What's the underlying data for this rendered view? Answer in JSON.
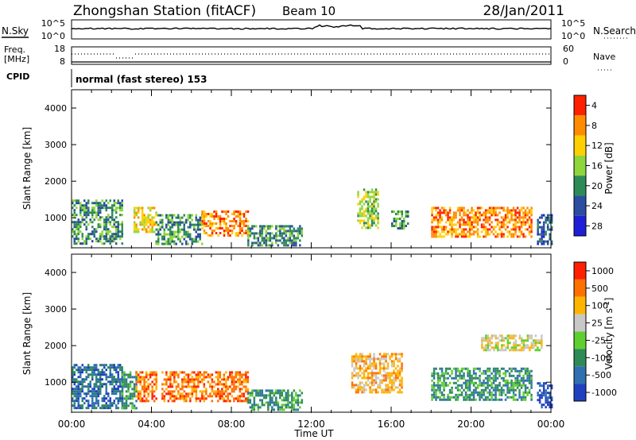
{
  "header": {
    "title": "Zhongshan Station (fitACF)",
    "beam": "Beam 10",
    "date": "28/Jan/2011"
  },
  "noise_panel": {
    "left_label": "N.Sky",
    "left_ticks": [
      "10^5",
      "10^0"
    ],
    "right_label": "N.Search",
    "right_ticks": [
      "10^5",
      "10^0"
    ]
  },
  "freq_panel": {
    "left_label_line1": "Freq.",
    "left_label_line2": "[MHz]",
    "left_ticks": [
      "18",
      "8"
    ],
    "right_label": "Nave",
    "right_ticks": [
      "60",
      "0"
    ]
  },
  "cpid": {
    "label": "CPID",
    "text": "normal (fast stereo) 153"
  },
  "x_axis": {
    "label": "Time UT",
    "tick_labels": [
      "00:00",
      "04:00",
      "08:00",
      "12:00",
      "16:00",
      "20:00",
      "00:00"
    ]
  },
  "chart_data": [
    {
      "type": "heatmap",
      "title": "",
      "quantity": "Power [dB]",
      "ylabel": "Slant Range [km]",
      "xlabel": "Time UT",
      "x_range_hours": [
        0,
        24
      ],
      "ylim": [
        180,
        4500
      ],
      "y_ticks": [
        1000,
        2000,
        3000,
        4000
      ],
      "colorbar": {
        "label": "Power [dB]",
        "tick_labels": [
          "4",
          "8",
          "12",
          "16",
          "20",
          "24",
          "28"
        ],
        "colors": [
          "#1f1fd8",
          "#2b4ea0",
          "#2e8b57",
          "#8fd63b",
          "#ffd000",
          "#ff8c00",
          "#ff2000"
        ]
      },
      "echo_regions": [
        {
          "t": [
            0.0,
            2.5
          ],
          "range_km": [
            300,
            1500
          ],
          "level": 2
        },
        {
          "t": [
            3.1,
            4.2
          ],
          "range_km": [
            600,
            1300
          ],
          "level": 4
        },
        {
          "t": [
            4.2,
            6.5
          ],
          "range_km": [
            300,
            1100
          ],
          "level": 2
        },
        {
          "t": [
            6.5,
            8.8
          ],
          "range_km": [
            500,
            1200
          ],
          "level": 5
        },
        {
          "t": [
            8.8,
            11.5
          ],
          "range_km": [
            250,
            800
          ],
          "level": 2
        },
        {
          "t": [
            14.3,
            15.3
          ],
          "range_km": [
            700,
            1800
          ],
          "level": 3
        },
        {
          "t": [
            16.0,
            16.8
          ],
          "range_km": [
            700,
            1200
          ],
          "level": 2
        },
        {
          "t": [
            18.0,
            23.0
          ],
          "range_km": [
            500,
            1300
          ],
          "level": 5
        },
        {
          "t": [
            23.3,
            24.0
          ],
          "range_km": [
            300,
            1100
          ],
          "level": 1
        }
      ]
    },
    {
      "type": "heatmap",
      "title": "",
      "quantity": "Velocity [m s^-1]",
      "ylabel": "Slant Range [km]",
      "xlabel": "Time UT",
      "x_range_hours": [
        0,
        24
      ],
      "ylim": [
        180,
        4500
      ],
      "y_ticks": [
        1000,
        2000,
        3000,
        4000
      ],
      "colorbar": {
        "label": "Velocity",
        "unit": "[m s",
        "unit_sup": "-1",
        "unit_end": "]",
        "tick_labels": [
          "1000",
          "500",
          "100",
          "25",
          "-25",
          "-100",
          "-500",
          "-1000"
        ],
        "colors": [
          "#2040c0",
          "#3070b0",
          "#2e8b57",
          "#5fcf2f",
          "#c8c8c8",
          "#ffb400",
          "#ff7000",
          "#ff2000"
        ]
      },
      "echo_regions": [
        {
          "t": [
            0.0,
            2.5
          ],
          "range_km": [
            300,
            1500
          ],
          "level": 1
        },
        {
          "t": [
            2.5,
            3.2
          ],
          "range_km": [
            300,
            1300
          ],
          "level": 2
        },
        {
          "t": [
            3.2,
            4.2
          ],
          "range_km": [
            500,
            1300
          ],
          "level": 6
        },
        {
          "t": [
            4.5,
            8.8
          ],
          "range_km": [
            500,
            1300
          ],
          "level": 6
        },
        {
          "t": [
            8.8,
            11.5
          ],
          "range_km": [
            250,
            800
          ],
          "level": 2
        },
        {
          "t": [
            14.0,
            16.5
          ],
          "range_km": [
            700,
            1800
          ],
          "level": 5
        },
        {
          "t": [
            18.0,
            23.0
          ],
          "range_km": [
            500,
            1400
          ],
          "level": 2
        },
        {
          "t": [
            20.5,
            23.5
          ],
          "range_km": [
            1900,
            2300
          ],
          "level": 4
        },
        {
          "t": [
            23.3,
            24.0
          ],
          "range_km": [
            300,
            1000
          ],
          "level": 0
        }
      ]
    }
  ]
}
